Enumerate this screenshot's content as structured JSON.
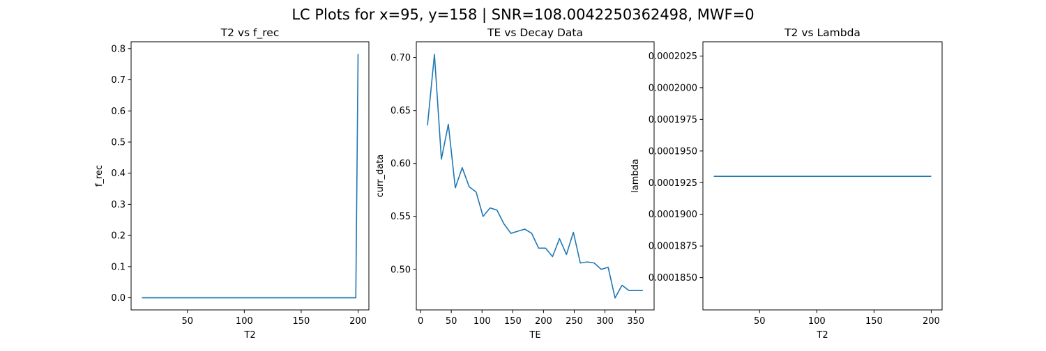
{
  "figure": {
    "suptitle": "LC Plots for x=95, y=158 | SNR=108.0042250362498, MWF=0"
  },
  "chart_data": [
    {
      "type": "line",
      "title": "T2 vs f_rec",
      "xlabel": "T2",
      "ylabel": "f_rec",
      "xlim": [
        0.5,
        209.5
      ],
      "ylim": [
        -0.039,
        0.822
      ],
      "xticks": [
        50,
        100,
        150,
        200
      ],
      "xtick_labels": [
        "50",
        "100",
        "150",
        "200"
      ],
      "yticks": [
        0.0,
        0.1,
        0.2,
        0.3,
        0.4,
        0.5,
        0.6,
        0.7,
        0.8
      ],
      "ytick_labels": [
        "0.0",
        "0.1",
        "0.2",
        "0.3",
        "0.4",
        "0.5",
        "0.6",
        "0.7",
        "0.8"
      ],
      "series": [
        {
          "color": "#1f77b4",
          "x": [
            10,
            198,
            200
          ],
          "y": [
            0.0,
            0.0,
            0.783
          ]
        }
      ]
    },
    {
      "type": "line",
      "title": "TE vs Decay Data",
      "xlabel": "TE",
      "ylabel": "curr_data",
      "xlim": [
        -6.9,
        379.9
      ],
      "ylim": [
        0.4617,
        0.7149
      ],
      "xticks": [
        0,
        50,
        100,
        150,
        200,
        250,
        300,
        350
      ],
      "xtick_labels": [
        "0",
        "50",
        "100",
        "150",
        "200",
        "250",
        "300",
        "350"
      ],
      "yticks": [
        0.5,
        0.55,
        0.6,
        0.65,
        0.7
      ],
      "ytick_labels": [
        "0.50",
        "0.55",
        "0.60",
        "0.65",
        "0.70"
      ],
      "series": [
        {
          "color": "#1f77b4",
          "x": [
            11.3,
            22.6,
            33.9,
            45.2,
            56.5,
            67.8,
            79.1,
            90.4,
            101.7,
            113,
            124.3,
            135.6,
            146.9,
            158.2,
            169.5,
            180.8,
            192.1,
            203.4,
            214.7,
            226,
            237.3,
            248.6,
            259.9,
            271.2,
            282.5,
            293.8,
            305.1,
            316.4,
            327.7,
            339,
            350.3,
            361.6
          ],
          "y": [
            0.636,
            0.703,
            0.604,
            0.637,
            0.577,
            0.596,
            0.578,
            0.573,
            0.55,
            0.558,
            0.556,
            0.543,
            0.534,
            0.536,
            0.538,
            0.534,
            0.52,
            0.52,
            0.512,
            0.529,
            0.514,
            0.535,
            0.506,
            0.507,
            0.506,
            0.5,
            0.502,
            0.473,
            0.485,
            0.48,
            0.48,
            0.48
          ]
        }
      ]
    },
    {
      "type": "line",
      "title": "T2 vs Lambda",
      "xlabel": "T2",
      "ylabel": "lambda",
      "xlim": [
        0.5,
        209.5
      ],
      "ylim": [
        0.00018245,
        0.000203625
      ],
      "xticks": [
        50,
        100,
        150,
        200
      ],
      "xtick_labels": [
        "50",
        "100",
        "150",
        "200"
      ],
      "yticks": [
        0.000185,
        0.0001875,
        0.00019,
        0.0001925,
        0.000195,
        0.0001975,
        0.0002,
        0.0002025
      ],
      "ytick_labels": [
        "0.0001850",
        "0.0001875",
        "0.0001900",
        "0.0001925",
        "0.0001950",
        "0.0001975",
        "0.0002000",
        "0.0002025"
      ],
      "series": [
        {
          "color": "#1f77b4",
          "x": [
            10,
            200
          ],
          "y": [
            0.000193,
            0.000193
          ]
        }
      ]
    }
  ]
}
